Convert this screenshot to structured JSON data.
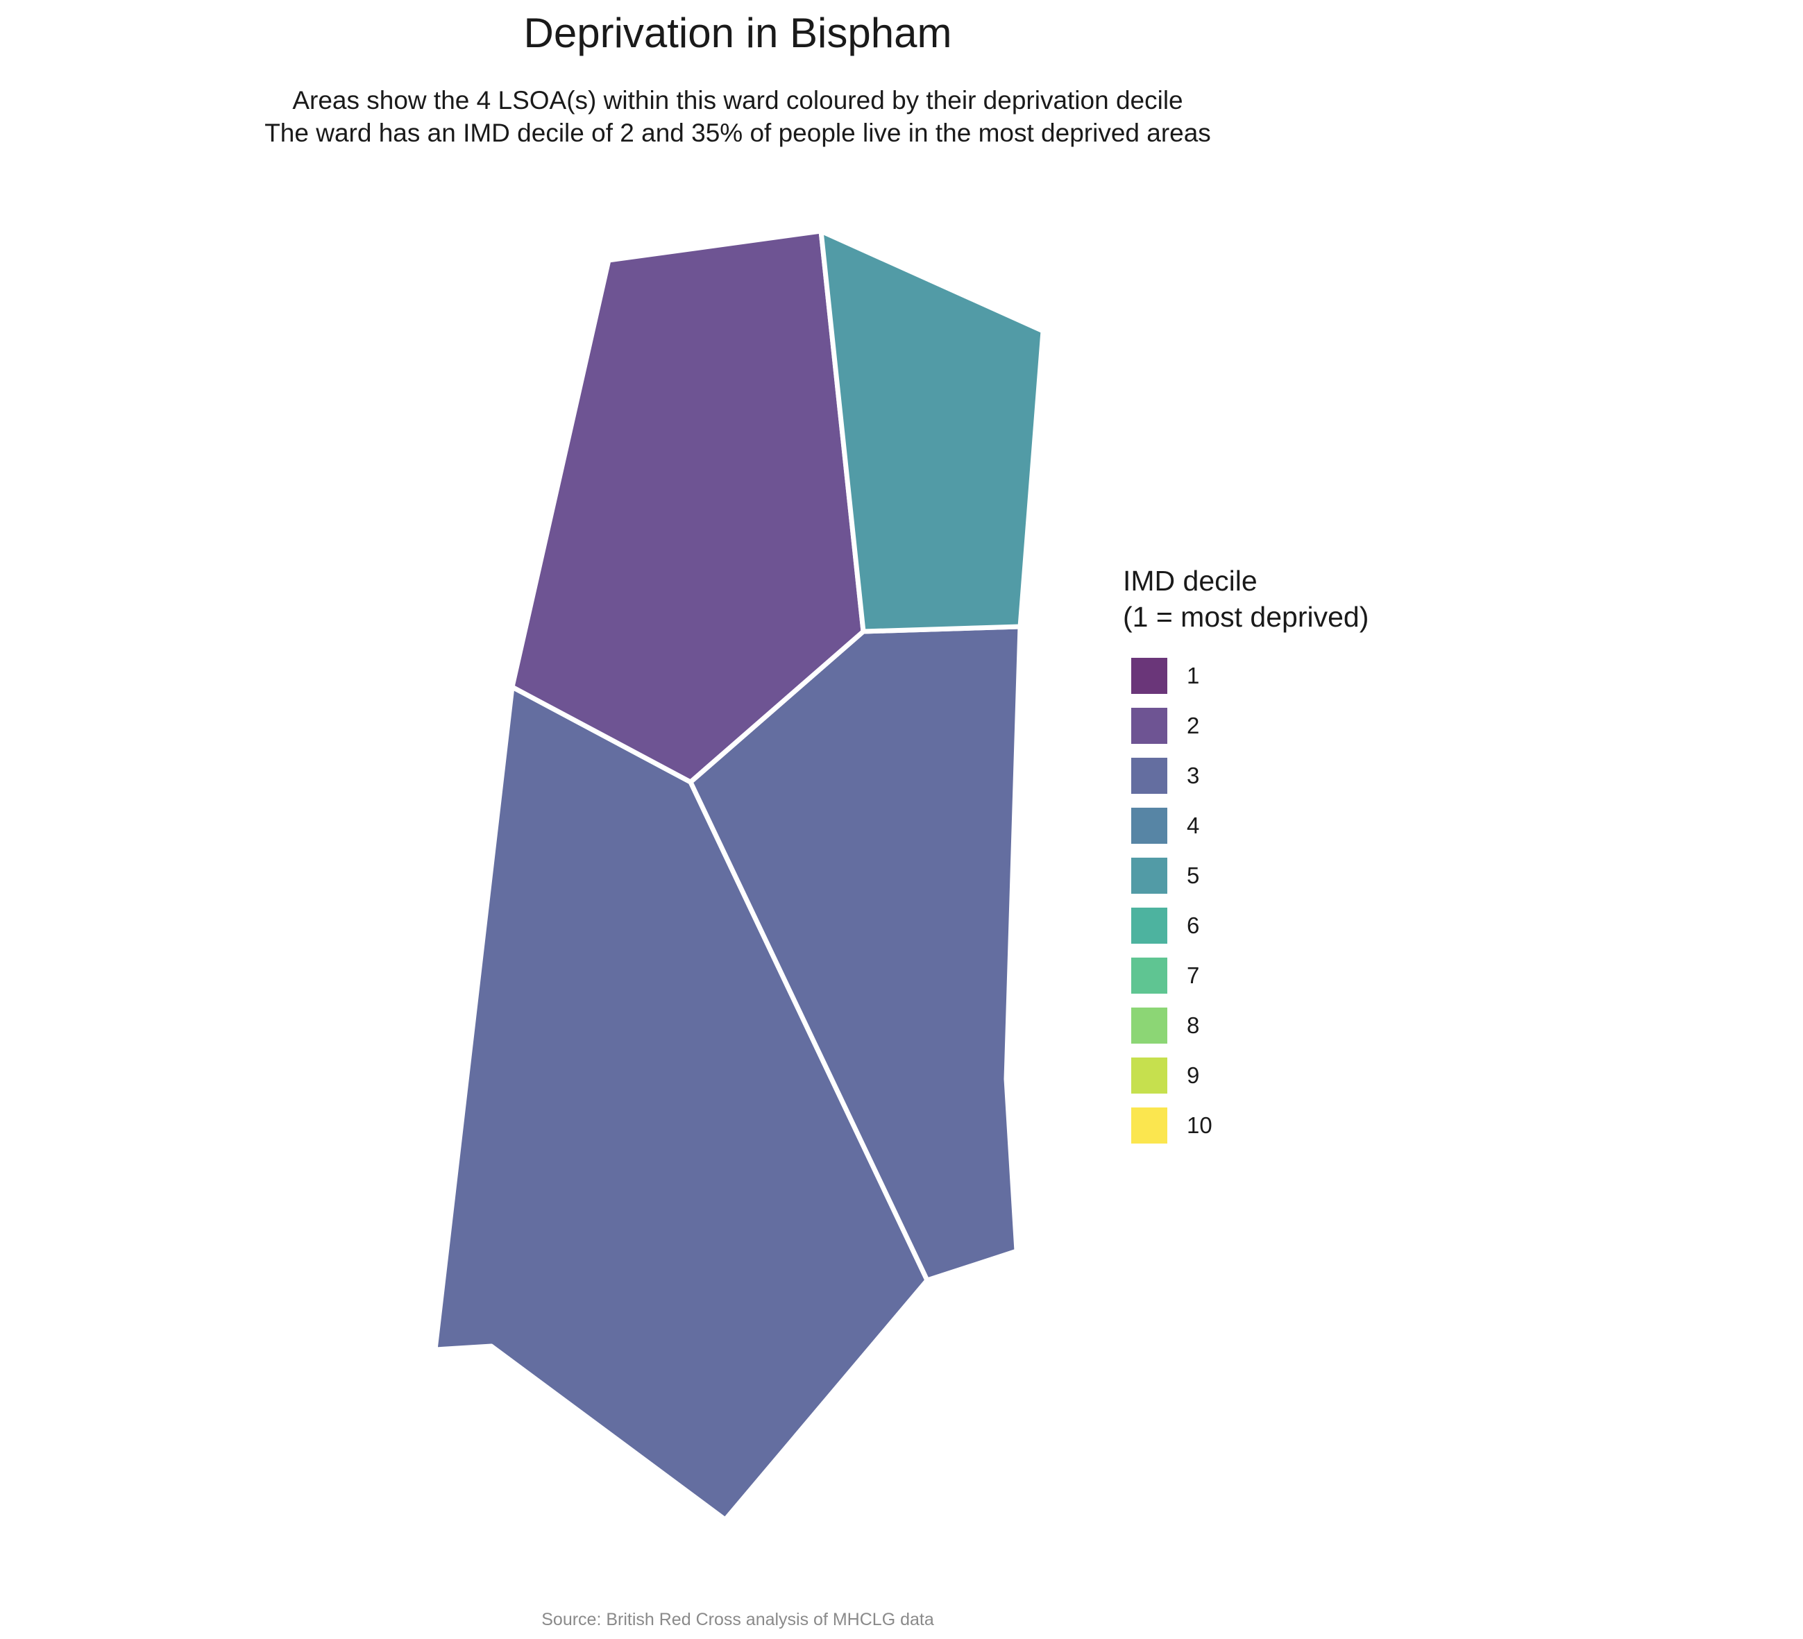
{
  "title": "Deprivation in Bispham",
  "subtitle_line1": "Areas show the 4 LSOA(s) within this ward coloured by their deprivation decile",
  "subtitle_line2": "The ward has an IMD decile of 2 and 35% of people live in the most deprived areas",
  "legend": {
    "title_line1": "IMD decile",
    "title_line2": "(1 = most deprived)",
    "items": [
      {
        "label": "1",
        "color": "#6a3679"
      },
      {
        "label": "2",
        "color": "#6e5493"
      },
      {
        "label": "3",
        "color": "#646ea0"
      },
      {
        "label": "4",
        "color": "#5785a5"
      },
      {
        "label": "5",
        "color": "#529ba6"
      },
      {
        "label": "6",
        "color": "#4db39f"
      },
      {
        "label": "7",
        "color": "#5fc592"
      },
      {
        "label": "8",
        "color": "#8cd675"
      },
      {
        "label": "9",
        "color": "#c6e04e"
      },
      {
        "label": "10",
        "color": "#fbe64f"
      }
    ]
  },
  "areas": [
    {
      "name": "lsoa-north-west",
      "decile": 2
    },
    {
      "name": "lsoa-north-east",
      "decile": 5
    },
    {
      "name": "lsoa-east",
      "decile": 3
    },
    {
      "name": "lsoa-south-west",
      "decile": 3
    }
  ],
  "caption": "Source: British Red Cross analysis of MHCLG data"
}
